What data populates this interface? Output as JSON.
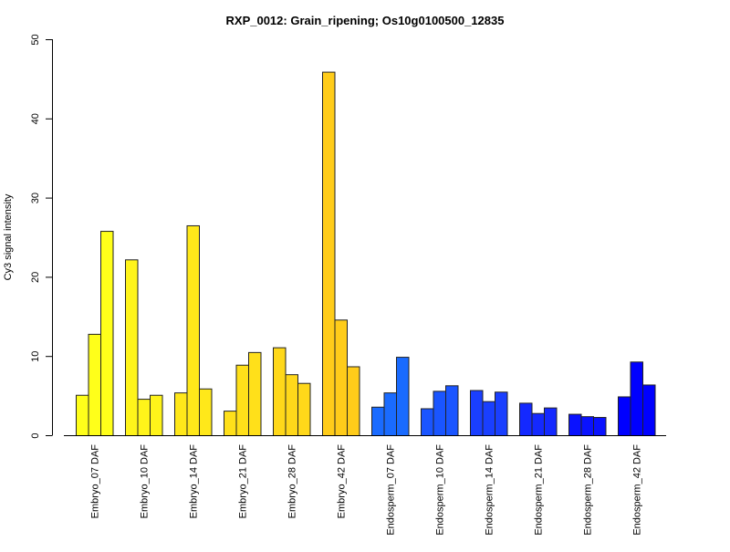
{
  "chart_data": {
    "type": "bar",
    "title": "RXP_0012: Grain_ripening; Os10g0100500_12835",
    "xlabel": "",
    "ylabel": "Cy3 signal intensity",
    "ylim": [
      0,
      50
    ],
    "yticks": [
      0,
      10,
      20,
      30,
      40,
      50
    ],
    "grid": false,
    "categories": [
      "Embryo_07 DAF",
      "Embryo_10 DAF",
      "Embryo_14 DAF",
      "Embryo_21 DAF",
      "Embryo_28 DAF",
      "Embryo_42 DAF",
      "Endosperm_07 DAF",
      "Endosperm_10 DAF",
      "Endosperm_14 DAF",
      "Endosperm_21 DAF",
      "Endosperm_28 DAF",
      "Endosperm_42 DAF"
    ],
    "replicates": [
      [
        5.1,
        12.8,
        25.8
      ],
      [
        22.2,
        4.6,
        5.1
      ],
      [
        5.4,
        26.5,
        5.9
      ],
      [
        3.1,
        8.9,
        10.5
      ],
      [
        11.1,
        7.7,
        6.6
      ],
      [
        45.9,
        14.6,
        8.7
      ],
      [
        3.6,
        5.4,
        9.9
      ],
      [
        3.4,
        5.6,
        6.3
      ],
      [
        5.7,
        4.3,
        5.5
      ],
      [
        4.1,
        2.8,
        3.5
      ],
      [
        2.7,
        2.4,
        2.3
      ],
      [
        4.9,
        9.3,
        6.4
      ]
    ],
    "colors": [
      "#FFFF1A",
      "#FFF41A",
      "#FFE81A",
      "#FFE01A",
      "#FFD81A",
      "#FFCC1A",
      "#1A6BFF",
      "#1A55FF",
      "#1A3FFF",
      "#1429FF",
      "#0A12FF",
      "#0000FF"
    ]
  }
}
